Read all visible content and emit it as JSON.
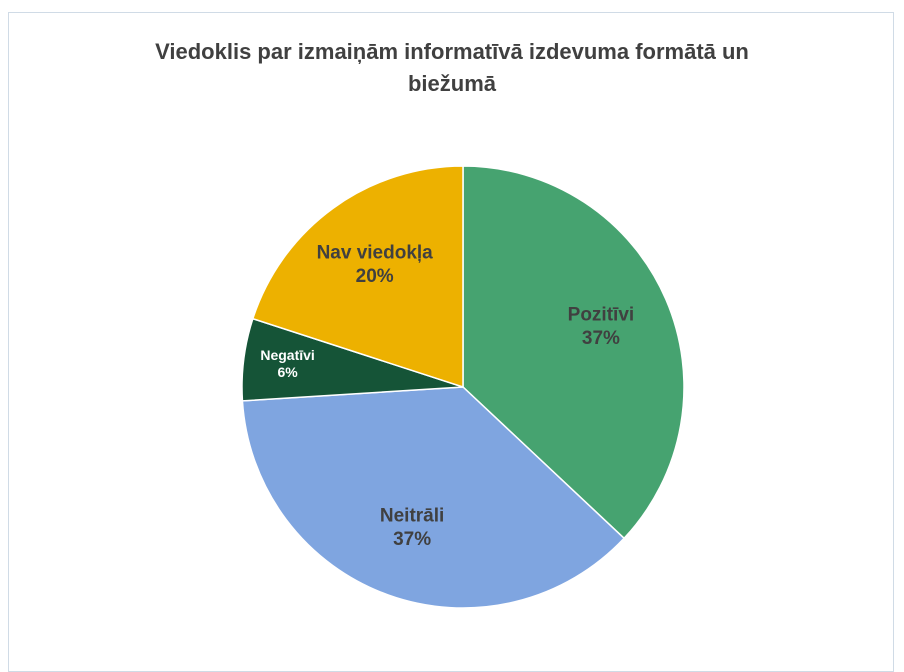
{
  "chart_data": {
    "type": "pie",
    "title": "Viedoklis par izmaiņām informatīvā izdevuma formātā un biežumā",
    "categories": [
      "Pozitīvi",
      "Neitrāli",
      "Negatīvi",
      "Nav viedokļa"
    ],
    "values": [
      37,
      37,
      6,
      20
    ],
    "value_labels": [
      "37%",
      "37%",
      "6%",
      "20%"
    ],
    "colors": [
      "#46a370",
      "#7fa5e0",
      "#155437",
      "#edb100"
    ],
    "label_colors": [
      "#404040",
      "#404040",
      "#ffffff",
      "#404040"
    ]
  }
}
